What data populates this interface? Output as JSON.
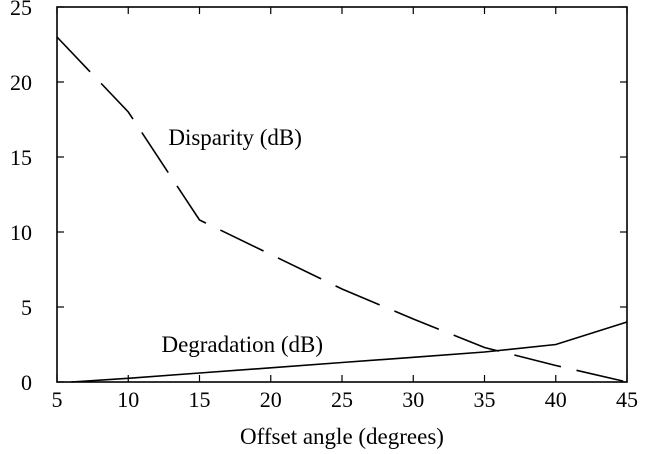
{
  "chart_data": {
    "type": "line",
    "title": "",
    "xlabel": "Offset angle (degrees)",
    "ylabel": "",
    "xlim": [
      5,
      45
    ],
    "ylim": [
      0,
      25
    ],
    "x_ticks": [
      5,
      10,
      15,
      20,
      25,
      30,
      35,
      40,
      45
    ],
    "y_ticks": [
      0,
      5,
      10,
      15,
      20,
      25
    ],
    "grid": false,
    "legend": "none",
    "series": [
      {
        "name": "Disparity (dB)",
        "line_style": "dashed",
        "color": "#000000",
        "points": [
          {
            "x": 5,
            "y": 23
          },
          {
            "x": 10,
            "y": 18
          },
          {
            "x": 15,
            "y": 10.8
          },
          {
            "x": 20,
            "y": 8.5
          },
          {
            "x": 25,
            "y": 6.2
          },
          {
            "x": 30,
            "y": 4.2
          },
          {
            "x": 35,
            "y": 2.3
          },
          {
            "x": 40,
            "y": 1.1
          },
          {
            "x": 45,
            "y": 0
          }
        ]
      },
      {
        "name": "Degradation (dB)",
        "line_style": "solid",
        "color": "#000000",
        "points": [
          {
            "x": 6,
            "y": 0
          },
          {
            "x": 10,
            "y": 0.25
          },
          {
            "x": 15,
            "y": 0.6
          },
          {
            "x": 20,
            "y": 0.95
          },
          {
            "x": 25,
            "y": 1.3
          },
          {
            "x": 30,
            "y": 1.65
          },
          {
            "x": 35,
            "y": 2.0
          },
          {
            "x": 40,
            "y": 2.5
          },
          {
            "x": 45,
            "y": 4.0
          }
        ]
      }
    ],
    "annotations": [
      {
        "text": "Disparity (dB)",
        "x": 17.5,
        "y": 15.8
      },
      {
        "text": "Degradation (dB)",
        "x": 18,
        "y": 2.0
      }
    ]
  }
}
